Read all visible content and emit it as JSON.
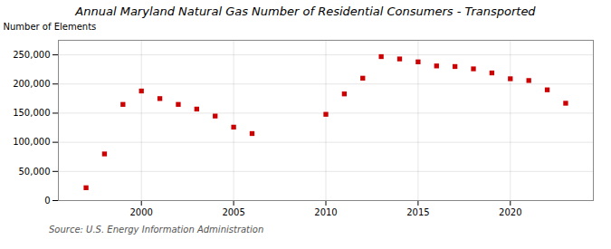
{
  "chart_data": {
    "type": "scatter",
    "title": "Annual Maryland Natural Gas Number of Residential Consumers - Transported",
    "y_label": "Number of Elements",
    "source": "Source: U.S. Energy Information Administration",
    "x": [
      1997,
      1998,
      1999,
      2000,
      2001,
      2002,
      2003,
      2004,
      2005,
      2006,
      2010,
      2011,
      2012,
      2013,
      2014,
      2015,
      2016,
      2017,
      2018,
      2019,
      2020,
      2021,
      2022,
      2023
    ],
    "values": [
      22000,
      80000,
      165000,
      188000,
      175000,
      165000,
      157000,
      145000,
      126000,
      115000,
      148000,
      183000,
      210000,
      247000,
      243000,
      238000,
      231000,
      230000,
      226000,
      219000,
      209000,
      206000,
      190000,
      167000
    ],
    "color": "#cc0000",
    "marker": "square",
    "xlim": [
      1995.5,
      2024.5
    ],
    "xticks": [
      2000,
      2005,
      2010,
      2015,
      2020
    ],
    "ylim": [
      0,
      275000
    ],
    "yticks": [
      0,
      {
        "value": 50000,
        "label": "50,000"
      },
      {
        "value": 100000,
        "label": "100,000"
      },
      {
        "value": 150000,
        "label": "150,000"
      },
      {
        "value": 200000,
        "label": "200,000"
      },
      {
        "value": 250000,
        "label": "250,000"
      }
    ],
    "grid": true
  }
}
